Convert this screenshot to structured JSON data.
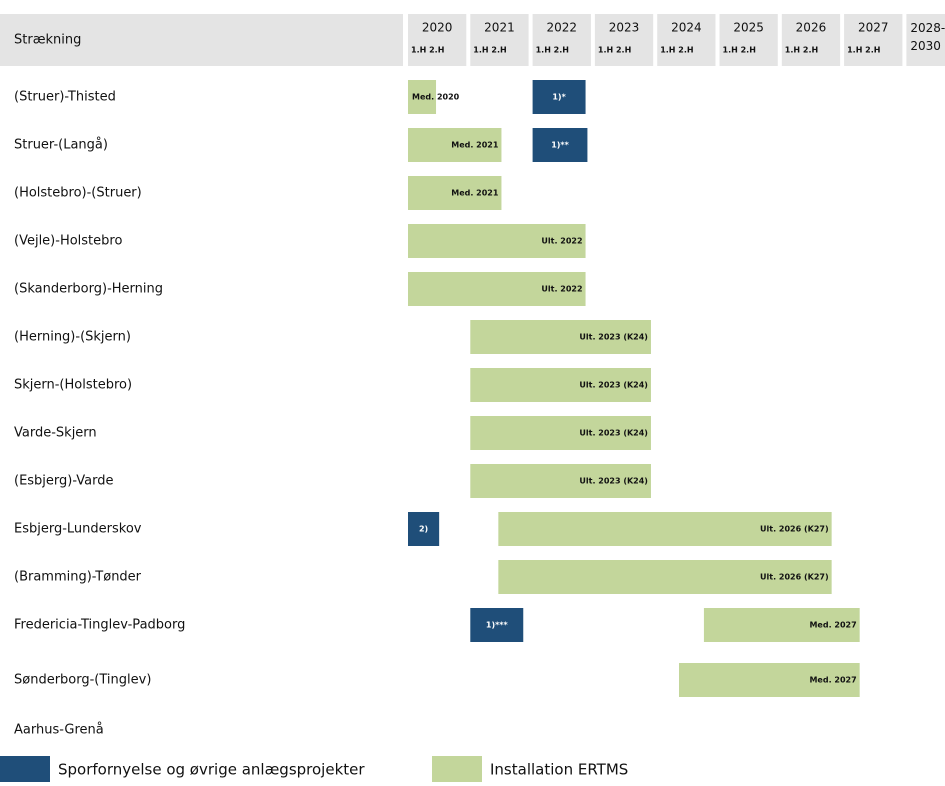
{
  "header": {
    "label": "Strækning",
    "years": [
      "2020",
      "2021",
      "2022",
      "2023",
      "2024",
      "2025",
      "2026",
      "2027",
      "2028-\n2030"
    ],
    "halves": "1.H 2.H"
  },
  "timeline": {
    "start": 2020,
    "end": 2028.6
  },
  "rows": [
    {
      "label": "(Struer)-Thisted",
      "bars": [
        {
          "start": 2020.0,
          "end": 2020.45,
          "text": "Med. 2020",
          "color": "#c3d69b"
        },
        {
          "start": 2022.0,
          "end": 2022.85,
          "text": "1)*",
          "color": "#1f4e79"
        }
      ]
    },
    {
      "label": "Struer-(Langå)",
      "bars": [
        {
          "start": 2020.0,
          "end": 2021.5,
          "text": "Med. 2021",
          "color": "#c3d69b"
        },
        {
          "start": 2022.0,
          "end": 2022.88,
          "text": "1)**",
          "color": "#1f4e79"
        }
      ]
    },
    {
      "label": "(Holstebro)-(Struer)",
      "bars": [
        {
          "start": 2020.0,
          "end": 2021.5,
          "text": "Med. 2021",
          "color": "#c3d69b"
        }
      ]
    },
    {
      "label": "(Vejle)-Holstebro",
      "bars": [
        {
          "start": 2020.0,
          "end": 2022.85,
          "text": "Ult. 2022",
          "color": "#c3d69b"
        }
      ]
    },
    {
      "label": "(Skanderborg)-Herning",
      "bars": [
        {
          "start": 2020.0,
          "end": 2022.85,
          "text": "Ult. 2022",
          "color": "#c3d69b"
        }
      ]
    },
    {
      "label": "(Herning)-(Skjern)",
      "bars": [
        {
          "start": 2021.0,
          "end": 2023.9,
          "text": "Ult. 2023 (K24)",
          "color": "#c3d69b"
        }
      ]
    },
    {
      "label": "Skjern-(Holstebro)",
      "bars": [
        {
          "start": 2021.0,
          "end": 2023.9,
          "text": "Ult. 2023 (K24)",
          "color": "#c3d69b"
        }
      ]
    },
    {
      "label": "Varde-Skjern",
      "bars": [
        {
          "start": 2021.0,
          "end": 2023.9,
          "text": "Ult. 2023 (K24)",
          "color": "#c3d69b"
        }
      ]
    },
    {
      "label": "(Esbjerg)-Varde",
      "bars": [
        {
          "start": 2021.0,
          "end": 2023.9,
          "text": "Ult. 2023 (K24)",
          "color": "#c3d69b"
        }
      ]
    },
    {
      "label": "Esbjerg-Lunderskov",
      "bars": [
        {
          "start": 2020.0,
          "end": 2020.5,
          "text": "2)",
          "color": "#1f4e79"
        },
        {
          "start": 2021.45,
          "end": 2026.8,
          "text": "Ult. 2026 (K27)",
          "color": "#c3d69b"
        }
      ]
    },
    {
      "label": "(Bramming)-Tønder",
      "bars": [
        {
          "start": 2021.45,
          "end": 2026.8,
          "text": "Ult. 2026 (K27)",
          "color": "#c3d69b"
        }
      ]
    },
    {
      "label": "Fredericia-Tinglev-Padborg",
      "bars": [
        {
          "start": 2021.0,
          "end": 2021.85,
          "text": "1)***",
          "color": "#1f4e79"
        },
        {
          "start": 2024.75,
          "end": 2027.25,
          "text": "Med. 2027",
          "color": "#c3d69b"
        }
      ]
    },
    {
      "label": "Sønderborg-(Tinglev)",
      "bars": [
        {
          "start": 2024.35,
          "end": 2027.25,
          "text": "Med. 2027",
          "color": "#c3d69b"
        }
      ]
    },
    {
      "label": "Aarhus-Grenå",
      "bars": []
    }
  ],
  "legend": [
    {
      "text": "Sporfornyelse og øvrige anlægsprojekter",
      "color": "#1f4e79"
    },
    {
      "text": "Installation ERTMS",
      "color": "#c3d69b"
    }
  ]
}
